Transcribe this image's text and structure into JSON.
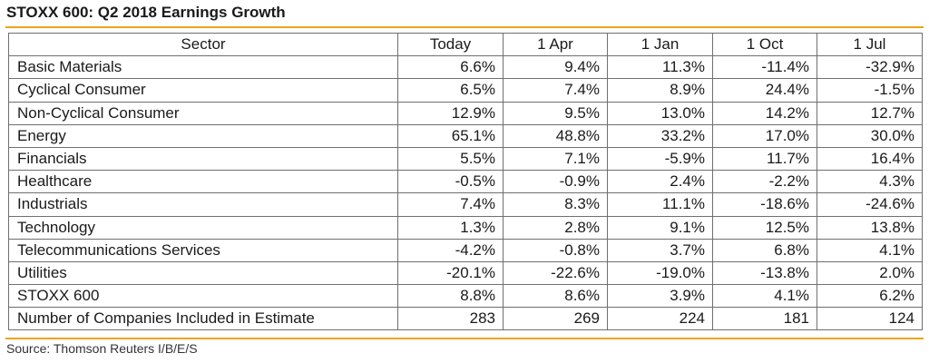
{
  "title": "STOXX 600: Q2 2018 Earnings Growth",
  "source": "Source: Thomson Reuters I/B/E/S",
  "colors": {
    "accent_rule": "#f0a21b",
    "grid": "#6f6f6f",
    "text": "#1a1a1a"
  },
  "chart_data": {
    "type": "table",
    "title": "STOXX 600: Q2 2018 Earnings Growth",
    "columns": [
      "Sector",
      "Today",
      "1 Apr",
      "1 Jan",
      "1 Oct",
      "1 Jul"
    ],
    "rows": [
      [
        "Basic Materials",
        "6.6%",
        "9.4%",
        "11.3%",
        "-11.4%",
        "-32.9%"
      ],
      [
        "Cyclical Consumer",
        "6.5%",
        "7.4%",
        "8.9%",
        "24.4%",
        "-1.5%"
      ],
      [
        "Non-Cyclical Consumer",
        "12.9%",
        "9.5%",
        "13.0%",
        "14.2%",
        "12.7%"
      ],
      [
        "Energy",
        "65.1%",
        "48.8%",
        "33.2%",
        "17.0%",
        "30.0%"
      ],
      [
        "Financials",
        "5.5%",
        "7.1%",
        "-5.9%",
        "11.7%",
        "16.4%"
      ],
      [
        "Healthcare",
        "-0.5%",
        "-0.9%",
        "2.4%",
        "-2.2%",
        "4.3%"
      ],
      [
        "Industrials",
        "7.4%",
        "8.3%",
        "11.1%",
        "-18.6%",
        "-24.6%"
      ],
      [
        "Technology",
        "1.3%",
        "2.8%",
        "9.1%",
        "12.5%",
        "13.8%"
      ],
      [
        "Telecommunications Services",
        "-4.2%",
        "-0.8%",
        "3.7%",
        "6.8%",
        "4.1%"
      ],
      [
        "Utilities",
        "-20.1%",
        "-22.6%",
        "-19.0%",
        "-13.8%",
        "2.0%"
      ],
      [
        "STOXX 600",
        "8.8%",
        "8.6%",
        "3.9%",
        "4.1%",
        "6.2%"
      ],
      [
        "Number of Companies Included in Estimate",
        "283",
        "269",
        "224",
        "181",
        "124"
      ]
    ]
  }
}
